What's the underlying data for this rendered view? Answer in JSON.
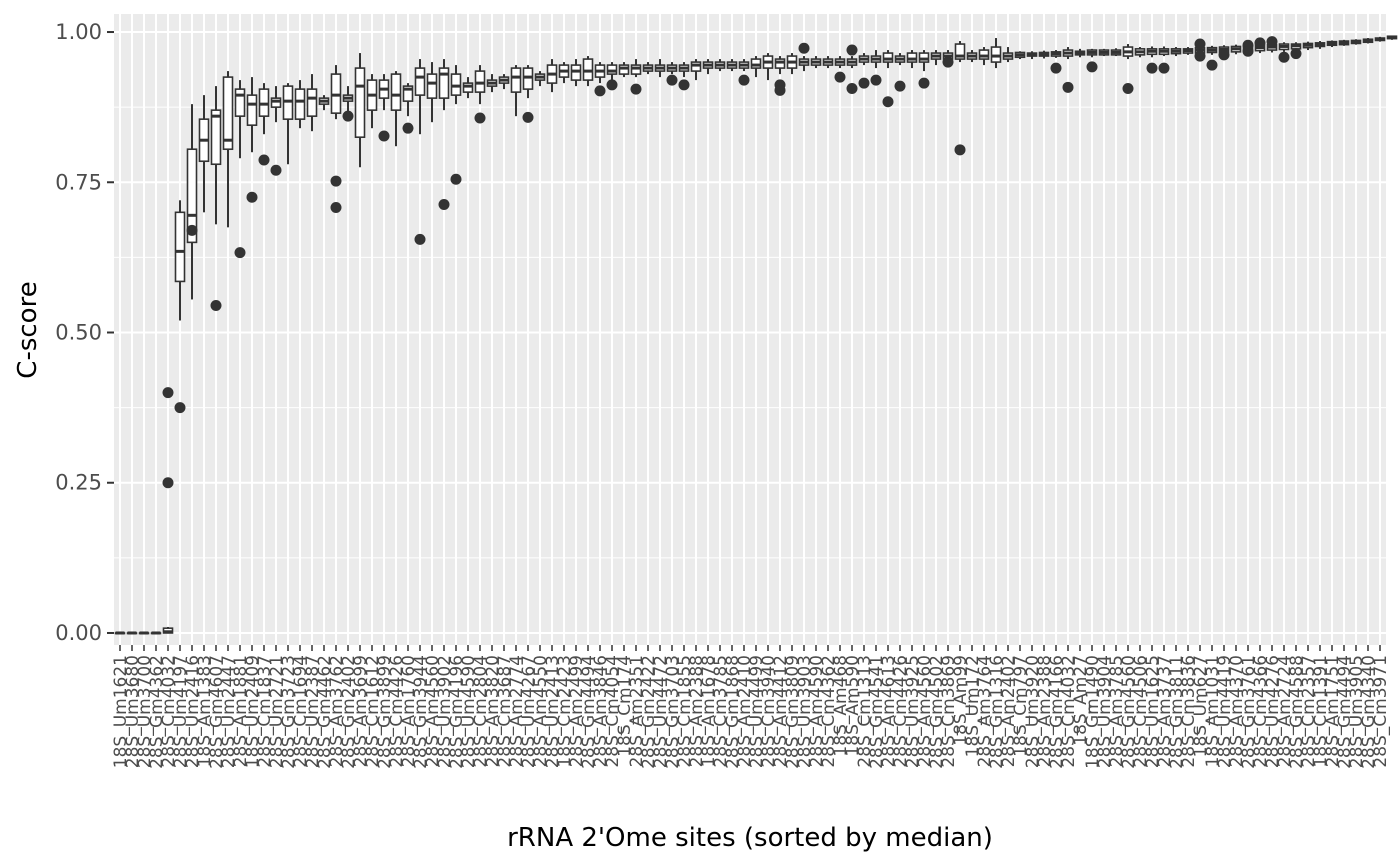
{
  "chart_data": {
    "type": "boxplot",
    "title": "",
    "xlabel": "rRNA 2'Ome sites (sorted by median)",
    "ylabel": "C-score",
    "ylim": [
      -0.02,
      1.03
    ],
    "yticks": [
      0.0,
      0.25,
      0.5,
      0.75,
      1.0
    ],
    "ytick_labels": [
      "0.00",
      "0.25",
      "0.75",
      "1.00"
    ],
    "ytick_labels_full": [
      "0.00",
      "0.25",
      "0.50",
      "0.75",
      "1.00"
    ],
    "grid": true,
    "background": "#ebebeb",
    "box_color": "#333333",
    "n_categories": 106,
    "categories": [
      "18S_Um1621",
      "28S_Um3680",
      "28S_Um3700",
      "28S_Gm4362",
      "28S_Cm4032",
      "28S_Um4197",
      "28S_Um2416",
      "18S_Am1383",
      "28S_Gm4607",
      "28S_Um2447",
      "28S_Am1881",
      "18S_Um2409",
      "28S_Cm1837",
      "28S_Um2721",
      "28S_Gm3723",
      "28S_Cm1694",
      "28S_Um2387",
      "28S_Gm4462",
      "28S_Am3762",
      "28S_Gm2402",
      "28S_Am3699",
      "28S_Cm1612",
      "28S_Gm3899",
      "28S_Cm4426",
      "28S_Am1760",
      "28S_Gm3944",
      "28S_Am4560",
      "28S_Um3902",
      "28S_Gm4196",
      "28S_Um4590",
      "28S_Cm2804",
      "28S_Am3820",
      "28S_Cm3687",
      "28S_Am2774",
      "28S_Um4267",
      "28S_Am4550",
      "28S_Um2413",
      "18S_Cm2423",
      "28S_Am2499",
      "28S_Gm4494",
      "28S_Am3846",
      "28S_Cm4054",
      "18S_Cm174",
      "28S_Am2351",
      "28S_Gm2422",
      "28S_Um4472",
      "28S_Gm3703",
      "28S_Cm1855",
      "28S_Am2388",
      "18S_Am1678",
      "28S_Cm3785",
      "28S_Gm1868",
      "28S_Am2410",
      "28S_Um4499",
      "28S_Cm3940",
      "28S_Am4412",
      "28S_Gm3809",
      "28S_Um3903",
      "28S_Am4590",
      "28S_Cm4362",
      "18S_Am468",
      "18S_Am590",
      "28S_Cm1313",
      "28S_Gm4541",
      "28S_Am4613",
      "28S_Cm4426",
      "28S_Um3925",
      "28S_Am4560",
      "28S_Gm4502",
      "28S_Cm3869",
      "18S_Am99",
      "18S_Um172",
      "28S_Am3764",
      "28S_Gm1316",
      "28S_Am2402",
      "18S_Cm797",
      "28S_Um3920",
      "28S_Am2388",
      "28S_Gm4166",
      "28S_Cm4032",
      "18S_Am27",
      "18S_Gm1490",
      "28S_Um3904",
      "28S_Am3785",
      "28S_Gm4560",
      "28S_Cm4506",
      "28S_Um1625",
      "28S_Am3737",
      "28S_Gm3811",
      "28S_Cm3836",
      "18S_Um627",
      "18S_Am1031",
      "28S_Um4419",
      "28S_Am4370",
      "28S_Gm3761",
      "28S_Cm4366",
      "28S_Um4276",
      "28S_Am2724",
      "28S_Gm4588",
      "28S_Cm2357",
      "18S_Cm1391",
      "28S_Am1751",
      "28S_Gm4494",
      "28S_Um3905",
      "28S_Gm4340",
      "28S_Cm3971"
    ],
    "boxes": [
      {
        "q1": 0.0,
        "median": 0.0,
        "q3": 0.0,
        "lo": 0.0,
        "hi": 0.0,
        "outliers": []
      },
      {
        "q1": 0.0,
        "median": 0.0,
        "q3": 0.0,
        "lo": 0.0,
        "hi": 0.0,
        "outliers": []
      },
      {
        "q1": 0.0,
        "median": 0.0,
        "q3": 0.0,
        "lo": 0.0,
        "hi": 0.0,
        "outliers": []
      },
      {
        "q1": 0.0,
        "median": 0.0,
        "q3": 0.0,
        "lo": 0.0,
        "hi": 0.0,
        "outliers": []
      },
      {
        "q1": 0.0,
        "median": 0.002,
        "q3": 0.008,
        "lo": 0.0,
        "hi": 0.01,
        "outliers": [
          0.4,
          0.25
        ]
      },
      {
        "q1": 0.585,
        "median": 0.635,
        "q3": 0.7,
        "lo": 0.52,
        "hi": 0.72,
        "outliers": [
          0.375
        ]
      },
      {
        "q1": 0.65,
        "median": 0.695,
        "q3": 0.805,
        "lo": 0.555,
        "hi": 0.88,
        "outliers": [
          0.67
        ]
      },
      {
        "q1": 0.785,
        "median": 0.82,
        "q3": 0.855,
        "lo": 0.7,
        "hi": 0.895,
        "outliers": []
      },
      {
        "q1": 0.78,
        "median": 0.86,
        "q3": 0.87,
        "lo": 0.68,
        "hi": 0.91,
        "outliers": [
          0.545
        ]
      },
      {
        "q1": 0.805,
        "median": 0.82,
        "q3": 0.925,
        "lo": 0.675,
        "hi": 0.935,
        "outliers": []
      },
      {
        "q1": 0.86,
        "median": 0.895,
        "q3": 0.905,
        "lo": 0.79,
        "hi": 0.92,
        "outliers": [
          0.633
        ]
      },
      {
        "q1": 0.845,
        "median": 0.88,
        "q3": 0.895,
        "lo": 0.8,
        "hi": 0.925,
        "outliers": [
          0.725
        ]
      },
      {
        "q1": 0.86,
        "median": 0.88,
        "q3": 0.905,
        "lo": 0.83,
        "hi": 0.915,
        "outliers": [
          0.787
        ]
      },
      {
        "q1": 0.875,
        "median": 0.885,
        "q3": 0.89,
        "lo": 0.85,
        "hi": 0.91,
        "outliers": [
          0.77
        ]
      },
      {
        "q1": 0.855,
        "median": 0.885,
        "q3": 0.91,
        "lo": 0.78,
        "hi": 0.915,
        "outliers": []
      },
      {
        "q1": 0.855,
        "median": 0.885,
        "q3": 0.905,
        "lo": 0.84,
        "hi": 0.92,
        "outliers": []
      },
      {
        "q1": 0.86,
        "median": 0.89,
        "q3": 0.905,
        "lo": 0.835,
        "hi": 0.93,
        "outliers": []
      },
      {
        "q1": 0.88,
        "median": 0.885,
        "q3": 0.89,
        "lo": 0.87,
        "hi": 0.895,
        "outliers": []
      },
      {
        "q1": 0.865,
        "median": 0.895,
        "q3": 0.93,
        "lo": 0.855,
        "hi": 0.945,
        "outliers": [
          0.752,
          0.708
        ]
      },
      {
        "q1": 0.885,
        "median": 0.89,
        "q3": 0.895,
        "lo": 0.855,
        "hi": 0.91,
        "outliers": [
          0.86
        ]
      },
      {
        "q1": 0.825,
        "median": 0.91,
        "q3": 0.94,
        "lo": 0.775,
        "hi": 0.965,
        "outliers": []
      },
      {
        "q1": 0.87,
        "median": 0.895,
        "q3": 0.92,
        "lo": 0.84,
        "hi": 0.93,
        "outliers": []
      },
      {
        "q1": 0.89,
        "median": 0.905,
        "q3": 0.92,
        "lo": 0.87,
        "hi": 0.93,
        "outliers": [
          0.827
        ]
      },
      {
        "q1": 0.87,
        "median": 0.895,
        "q3": 0.93,
        "lo": 0.81,
        "hi": 0.935,
        "outliers": []
      },
      {
        "q1": 0.885,
        "median": 0.905,
        "q3": 0.91,
        "lo": 0.86,
        "hi": 0.915,
        "outliers": [
          0.84
        ]
      },
      {
        "q1": 0.895,
        "median": 0.925,
        "q3": 0.94,
        "lo": 0.83,
        "hi": 0.955,
        "outliers": [
          0.655
        ]
      },
      {
        "q1": 0.89,
        "median": 0.915,
        "q3": 0.93,
        "lo": 0.85,
        "hi": 0.95,
        "outliers": []
      },
      {
        "q1": 0.89,
        "median": 0.93,
        "q3": 0.94,
        "lo": 0.87,
        "hi": 0.955,
        "outliers": [
          0.713
        ]
      },
      {
        "q1": 0.895,
        "median": 0.91,
        "q3": 0.93,
        "lo": 0.88,
        "hi": 0.945,
        "outliers": [
          0.755
        ]
      },
      {
        "q1": 0.9,
        "median": 0.91,
        "q3": 0.915,
        "lo": 0.89,
        "hi": 0.925,
        "outliers": []
      },
      {
        "q1": 0.9,
        "median": 0.915,
        "q3": 0.935,
        "lo": 0.88,
        "hi": 0.945,
        "outliers": [
          0.857
        ]
      },
      {
        "q1": 0.91,
        "median": 0.915,
        "q3": 0.92,
        "lo": 0.9,
        "hi": 0.93,
        "outliers": []
      },
      {
        "q1": 0.915,
        "median": 0.92,
        "q3": 0.925,
        "lo": 0.905,
        "hi": 0.93,
        "outliers": []
      },
      {
        "q1": 0.9,
        "median": 0.925,
        "q3": 0.94,
        "lo": 0.86,
        "hi": 0.945,
        "outliers": []
      },
      {
        "q1": 0.905,
        "median": 0.925,
        "q3": 0.94,
        "lo": 0.89,
        "hi": 0.945,
        "outliers": [
          0.858
        ]
      },
      {
        "q1": 0.92,
        "median": 0.925,
        "q3": 0.93,
        "lo": 0.91,
        "hi": 0.935,
        "outliers": []
      },
      {
        "q1": 0.915,
        "median": 0.93,
        "q3": 0.945,
        "lo": 0.9,
        "hi": 0.955,
        "outliers": []
      },
      {
        "q1": 0.925,
        "median": 0.935,
        "q3": 0.945,
        "lo": 0.915,
        "hi": 0.95,
        "outliers": []
      },
      {
        "q1": 0.92,
        "median": 0.935,
        "q3": 0.945,
        "lo": 0.91,
        "hi": 0.955,
        "outliers": []
      },
      {
        "q1": 0.92,
        "median": 0.935,
        "q3": 0.955,
        "lo": 0.91,
        "hi": 0.96,
        "outliers": []
      },
      {
        "q1": 0.925,
        "median": 0.935,
        "q3": 0.945,
        "lo": 0.915,
        "hi": 0.95,
        "outliers": [
          0.902
        ]
      },
      {
        "q1": 0.93,
        "median": 0.935,
        "q3": 0.945,
        "lo": 0.92,
        "hi": 0.95,
        "outliers": [
          0.912
        ]
      },
      {
        "q1": 0.93,
        "median": 0.94,
        "q3": 0.945,
        "lo": 0.925,
        "hi": 0.95,
        "outliers": []
      },
      {
        "q1": 0.93,
        "median": 0.94,
        "q3": 0.945,
        "lo": 0.925,
        "hi": 0.955,
        "outliers": [
          0.905
        ]
      },
      {
        "q1": 0.935,
        "median": 0.94,
        "q3": 0.945,
        "lo": 0.93,
        "hi": 0.95,
        "outliers": []
      },
      {
        "q1": 0.935,
        "median": 0.94,
        "q3": 0.945,
        "lo": 0.925,
        "hi": 0.955,
        "outliers": []
      },
      {
        "q1": 0.935,
        "median": 0.94,
        "q3": 0.945,
        "lo": 0.93,
        "hi": 0.95,
        "outliers": [
          0.92
        ]
      },
      {
        "q1": 0.935,
        "median": 0.94,
        "q3": 0.945,
        "lo": 0.925,
        "hi": 0.95,
        "outliers": [
          0.912
        ]
      },
      {
        "q1": 0.935,
        "median": 0.945,
        "q3": 0.95,
        "lo": 0.92,
        "hi": 0.955,
        "outliers": []
      },
      {
        "q1": 0.94,
        "median": 0.945,
        "q3": 0.95,
        "lo": 0.93,
        "hi": 0.955,
        "outliers": []
      },
      {
        "q1": 0.94,
        "median": 0.945,
        "q3": 0.95,
        "lo": 0.935,
        "hi": 0.955,
        "outliers": []
      },
      {
        "q1": 0.94,
        "median": 0.945,
        "q3": 0.95,
        "lo": 0.935,
        "hi": 0.955,
        "outliers": []
      },
      {
        "q1": 0.94,
        "median": 0.945,
        "q3": 0.95,
        "lo": 0.935,
        "hi": 0.955,
        "outliers": [
          0.92
        ]
      },
      {
        "q1": 0.94,
        "median": 0.945,
        "q3": 0.955,
        "lo": 0.925,
        "hi": 0.96,
        "outliers": []
      },
      {
        "q1": 0.94,
        "median": 0.95,
        "q3": 0.96,
        "lo": 0.92,
        "hi": 0.965,
        "outliers": []
      },
      {
        "q1": 0.94,
        "median": 0.95,
        "q3": 0.955,
        "lo": 0.93,
        "hi": 0.96,
        "outliers": [
          0.912,
          0.903
        ]
      },
      {
        "q1": 0.94,
        "median": 0.95,
        "q3": 0.96,
        "lo": 0.93,
        "hi": 0.965,
        "outliers": []
      },
      {
        "q1": 0.945,
        "median": 0.95,
        "q3": 0.955,
        "lo": 0.935,
        "hi": 0.96,
        "outliers": [
          0.973
        ]
      },
      {
        "q1": 0.945,
        "median": 0.95,
        "q3": 0.955,
        "lo": 0.94,
        "hi": 0.96,
        "outliers": []
      },
      {
        "q1": 0.945,
        "median": 0.95,
        "q3": 0.955,
        "lo": 0.94,
        "hi": 0.96,
        "outliers": []
      },
      {
        "q1": 0.945,
        "median": 0.95,
        "q3": 0.955,
        "lo": 0.94,
        "hi": 0.96,
        "outliers": [
          0.925
        ]
      },
      {
        "q1": 0.945,
        "median": 0.95,
        "q3": 0.955,
        "lo": 0.94,
        "hi": 0.96,
        "outliers": [
          0.97,
          0.906
        ]
      },
      {
        "q1": 0.95,
        "median": 0.955,
        "q3": 0.96,
        "lo": 0.945,
        "hi": 0.965,
        "outliers": [
          0.915
        ]
      },
      {
        "q1": 0.95,
        "median": 0.955,
        "q3": 0.96,
        "lo": 0.94,
        "hi": 0.97,
        "outliers": [
          0.92
        ]
      },
      {
        "q1": 0.95,
        "median": 0.955,
        "q3": 0.965,
        "lo": 0.94,
        "hi": 0.97,
        "outliers": [
          0.884
        ]
      },
      {
        "q1": 0.95,
        "median": 0.955,
        "q3": 0.96,
        "lo": 0.945,
        "hi": 0.965,
        "outliers": [
          0.91
        ]
      },
      {
        "q1": 0.95,
        "median": 0.955,
        "q3": 0.965,
        "lo": 0.94,
        "hi": 0.97,
        "outliers": []
      },
      {
        "q1": 0.95,
        "median": 0.955,
        "q3": 0.965,
        "lo": 0.935,
        "hi": 0.97,
        "outliers": [
          0.915
        ]
      },
      {
        "q1": 0.955,
        "median": 0.96,
        "q3": 0.965,
        "lo": 0.945,
        "hi": 0.97,
        "outliers": []
      },
      {
        "q1": 0.955,
        "median": 0.96,
        "q3": 0.965,
        "lo": 0.95,
        "hi": 0.97,
        "outliers": [
          0.95
        ]
      },
      {
        "q1": 0.955,
        "median": 0.96,
        "q3": 0.98,
        "lo": 0.95,
        "hi": 0.985,
        "outliers": [
          0.804
        ]
      },
      {
        "q1": 0.955,
        "median": 0.96,
        "q3": 0.965,
        "lo": 0.95,
        "hi": 0.97,
        "outliers": []
      },
      {
        "q1": 0.955,
        "median": 0.96,
        "q3": 0.97,
        "lo": 0.945,
        "hi": 0.975,
        "outliers": []
      },
      {
        "q1": 0.95,
        "median": 0.96,
        "q3": 0.975,
        "lo": 0.94,
        "hi": 0.99,
        "outliers": []
      },
      {
        "q1": 0.955,
        "median": 0.96,
        "q3": 0.965,
        "lo": 0.95,
        "hi": 0.975,
        "outliers": []
      },
      {
        "q1": 0.958,
        "median": 0.962,
        "q3": 0.966,
        "lo": 0.955,
        "hi": 0.968,
        "outliers": []
      },
      {
        "q1": 0.96,
        "median": 0.962,
        "q3": 0.965,
        "lo": 0.955,
        "hi": 0.968,
        "outliers": []
      },
      {
        "q1": 0.96,
        "median": 0.963,
        "q3": 0.966,
        "lo": 0.956,
        "hi": 0.969,
        "outliers": []
      },
      {
        "q1": 0.96,
        "median": 0.964,
        "q3": 0.967,
        "lo": 0.957,
        "hi": 0.97,
        "outliers": [
          0.94
        ]
      },
      {
        "q1": 0.96,
        "median": 0.965,
        "q3": 0.97,
        "lo": 0.955,
        "hi": 0.975,
        "outliers": [
          0.908
        ]
      },
      {
        "q1": 0.962,
        "median": 0.965,
        "q3": 0.968,
        "lo": 0.958,
        "hi": 0.972,
        "outliers": []
      },
      {
        "q1": 0.962,
        "median": 0.966,
        "q3": 0.97,
        "lo": 0.958,
        "hi": 0.972,
        "outliers": [
          0.942
        ]
      },
      {
        "q1": 0.962,
        "median": 0.966,
        "q3": 0.97,
        "lo": 0.96,
        "hi": 0.972,
        "outliers": []
      },
      {
        "q1": 0.962,
        "median": 0.966,
        "q3": 0.97,
        "lo": 0.96,
        "hi": 0.973,
        "outliers": []
      },
      {
        "q1": 0.96,
        "median": 0.967,
        "q3": 0.975,
        "lo": 0.955,
        "hi": 0.98,
        "outliers": [
          0.906
        ]
      },
      {
        "q1": 0.962,
        "median": 0.967,
        "q3": 0.972,
        "lo": 0.958,
        "hi": 0.975,
        "outliers": []
      },
      {
        "q1": 0.963,
        "median": 0.968,
        "q3": 0.972,
        "lo": 0.958,
        "hi": 0.976,
        "outliers": [
          0.94
        ]
      },
      {
        "q1": 0.963,
        "median": 0.968,
        "q3": 0.972,
        "lo": 0.96,
        "hi": 0.976,
        "outliers": [
          0.94
        ]
      },
      {
        "q1": 0.964,
        "median": 0.968,
        "q3": 0.972,
        "lo": 0.96,
        "hi": 0.975,
        "outliers": []
      },
      {
        "q1": 0.965,
        "median": 0.969,
        "q3": 0.972,
        "lo": 0.962,
        "hi": 0.975,
        "outliers": []
      },
      {
        "q1": 0.965,
        "median": 0.97,
        "q3": 0.974,
        "lo": 0.96,
        "hi": 0.977,
        "outliers": [
          0.98,
          0.96
        ]
      },
      {
        "q1": 0.966,
        "median": 0.97,
        "q3": 0.974,
        "lo": 0.962,
        "hi": 0.977,
        "outliers": [
          0.945
        ]
      },
      {
        "q1": 0.966,
        "median": 0.971,
        "q3": 0.975,
        "lo": 0.962,
        "hi": 0.978,
        "outliers": [
          0.962
        ]
      },
      {
        "q1": 0.967,
        "median": 0.972,
        "q3": 0.976,
        "lo": 0.963,
        "hi": 0.979,
        "outliers": []
      },
      {
        "q1": 0.968,
        "median": 0.973,
        "q3": 0.977,
        "lo": 0.963,
        "hi": 0.98,
        "outliers": [
          0.978,
          0.968
        ]
      },
      {
        "q1": 0.969,
        "median": 0.974,
        "q3": 0.978,
        "lo": 0.965,
        "hi": 0.98,
        "outliers": [
          0.982
        ]
      },
      {
        "q1": 0.97,
        "median": 0.975,
        "q3": 0.979,
        "lo": 0.966,
        "hi": 0.982,
        "outliers": [
          0.984
        ]
      },
      {
        "q1": 0.971,
        "median": 0.976,
        "q3": 0.98,
        "lo": 0.967,
        "hi": 0.983,
        "outliers": [
          0.958
        ]
      },
      {
        "q1": 0.972,
        "median": 0.977,
        "q3": 0.98,
        "lo": 0.968,
        "hi": 0.983,
        "outliers": [
          0.964
        ]
      },
      {
        "q1": 0.974,
        "median": 0.978,
        "q3": 0.981,
        "lo": 0.97,
        "hi": 0.984,
        "outliers": []
      },
      {
        "q1": 0.976,
        "median": 0.979,
        "q3": 0.982,
        "lo": 0.972,
        "hi": 0.985,
        "outliers": []
      },
      {
        "q1": 0.978,
        "median": 0.981,
        "q3": 0.984,
        "lo": 0.975,
        "hi": 0.986,
        "outliers": []
      },
      {
        "q1": 0.979,
        "median": 0.982,
        "q3": 0.985,
        "lo": 0.977,
        "hi": 0.987,
        "outliers": []
      },
      {
        "q1": 0.981,
        "median": 0.984,
        "q3": 0.986,
        "lo": 0.979,
        "hi": 0.988,
        "outliers": []
      },
      {
        "q1": 0.983,
        "median": 0.986,
        "q3": 0.988,
        "lo": 0.981,
        "hi": 0.99,
        "outliers": []
      },
      {
        "q1": 0.986,
        "median": 0.988,
        "q3": 0.99,
        "lo": 0.984,
        "hi": 0.992,
        "outliers": []
      },
      {
        "q1": 0.989,
        "median": 0.991,
        "q3": 0.993,
        "lo": 0.987,
        "hi": 0.994,
        "outliers": []
      }
    ]
  }
}
